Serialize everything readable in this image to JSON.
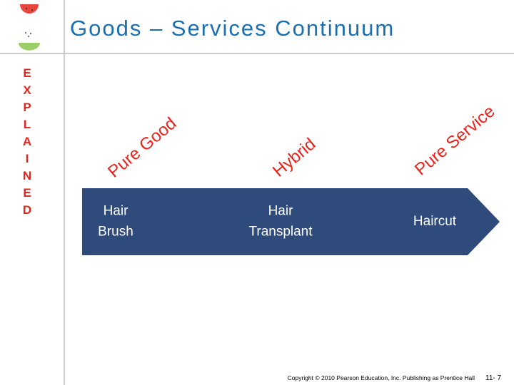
{
  "header": {
    "title": "Goods – Services Continuum"
  },
  "sidebar": {
    "letters": [
      "E",
      "X",
      "P",
      "L",
      "A",
      "I",
      "N",
      "E",
      "D"
    ]
  },
  "continuum": {
    "positions": [
      "Pure Good",
      "Hybrid",
      "Pure Service"
    ],
    "examples": [
      [
        "Hair",
        "Brush"
      ],
      [
        "Hair",
        "Transplant"
      ],
      [
        "Haircut"
      ]
    ]
  },
  "footer": {
    "copyright": "Copyright © 2010 Pearson Education, Inc. Publishing as Prentice Hall",
    "page": "11- 7"
  }
}
